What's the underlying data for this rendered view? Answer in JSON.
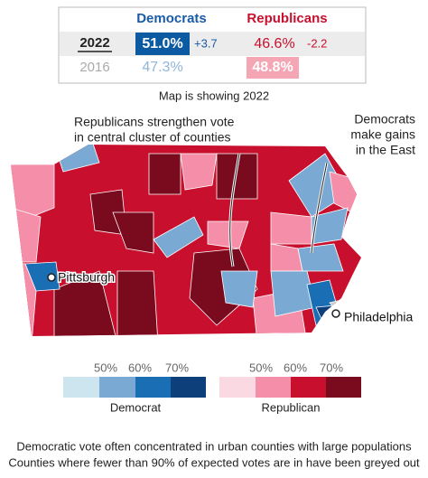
{
  "results": {
    "headers": [
      "Democrats",
      "Republicans"
    ],
    "rows": [
      {
        "year": "2022",
        "dem": "51.0%",
        "dem_change": "+3.7",
        "rep": "46.6%",
        "rep_change": "-2.2"
      },
      {
        "year": "2016",
        "dem": "47.3%",
        "rep": "48.8%"
      }
    ]
  },
  "subtitle": "Map is showing 2022",
  "annotations": [
    {
      "lines": [
        "Republicans strengthen vote",
        "in central cluster of counties"
      ]
    },
    {
      "lines": [
        "Democrats",
        "make gains",
        "in the East"
      ]
    }
  ],
  "cities": [
    "Pittsburgh",
    "Philadelphia"
  ],
  "legend": {
    "ticks": [
      "50%",
      "60%",
      "70%"
    ],
    "democrat": "Democrat",
    "republican": "Republican"
  },
  "notes": [
    "Democratic vote often concentrated in urban counties with large populations",
    "Counties where fewer than 90% of expected votes are in have been greyed out"
  ]
}
